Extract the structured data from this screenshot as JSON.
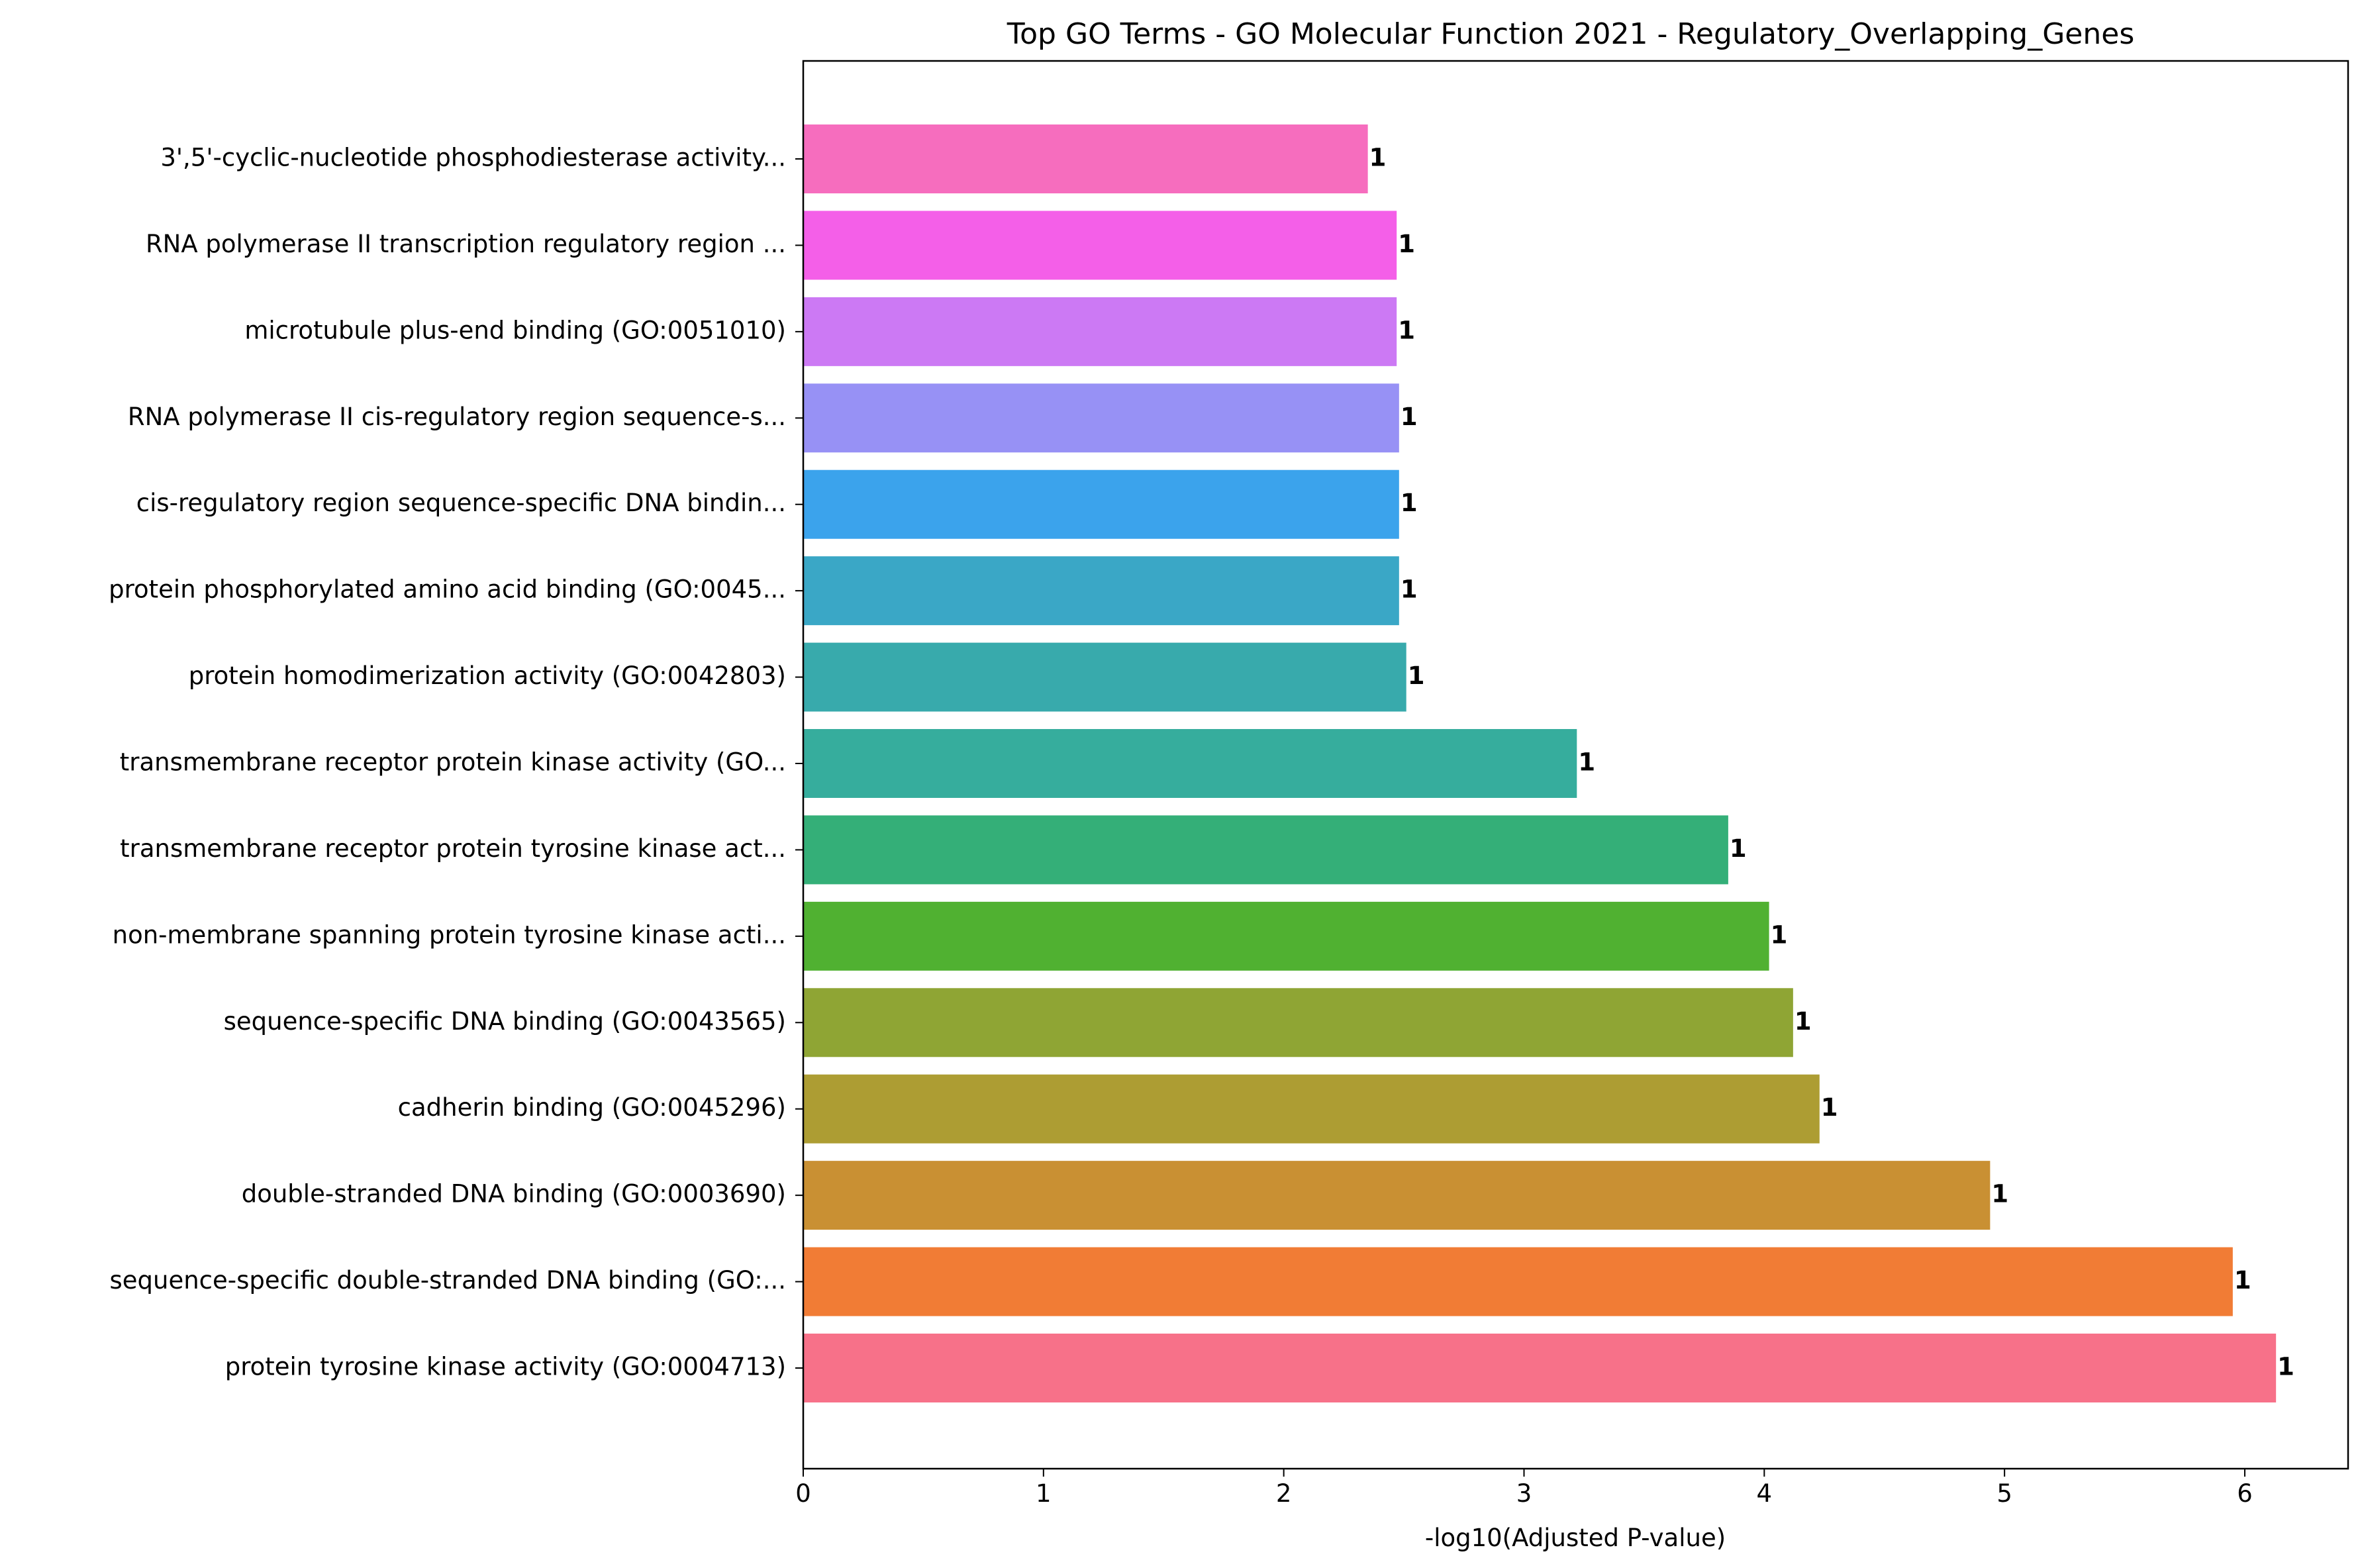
{
  "chart_data": {
    "type": "bar",
    "orientation": "horizontal",
    "title": "Top GO Terms - GO Molecular Function 2021 - Regulatory_Overlapping_Genes",
    "xlabel": "-log10(Adjusted P-value)",
    "ylabel": "",
    "xlim": [
      0,
      6.43
    ],
    "xticks": [
      "0",
      "1",
      "2",
      "3",
      "4",
      "5",
      "6"
    ],
    "grid": false,
    "bars": [
      {
        "label": "protein tyrosine kinase activity (GO:0004713)",
        "value": 6.13,
        "count": "1",
        "color": "#f77189"
      },
      {
        "label": "sequence-specific double-stranded DNA binding (GO:...",
        "value": 5.95,
        "count": "1",
        "color": "#f17c35"
      },
      {
        "label": "double-stranded DNA binding (GO:0003690)",
        "value": 4.94,
        "count": "1",
        "color": "#c99033"
      },
      {
        "label": "cadherin binding (GO:0045296)",
        "value": 4.23,
        "count": "1",
        "color": "#ad9d33"
      },
      {
        "label": "sequence-specific DNA binding (GO:0043565)",
        "value": 4.12,
        "count": "1",
        "color": "#8fa534"
      },
      {
        "label": "non-membrane spanning protein tyrosine kinase acti...",
        "value": 4.02,
        "count": "1",
        "color": "#50b131"
      },
      {
        "label": "transmembrane receptor protein tyrosine kinase act...",
        "value": 3.85,
        "count": "1",
        "color": "#34af78"
      },
      {
        "label": "transmembrane receptor protein kinase activity (GO...",
        "value": 3.22,
        "count": "1",
        "color": "#36ad9d"
      },
      {
        "label": "protein homodimerization activity (GO:0042803)",
        "value": 2.51,
        "count": "1",
        "color": "#38aaac"
      },
      {
        "label": "protein phosphorylated amino acid binding (GO:0045...",
        "value": 2.48,
        "count": "1",
        "color": "#3aa7c6"
      },
      {
        "label": "cis-regulatory region sequence-specific DNA bindin...",
        "value": 2.48,
        "count": "1",
        "color": "#3ba3ec"
      },
      {
        "label": "RNA polymerase II cis-regulatory region sequence-s...",
        "value": 2.48,
        "count": "1",
        "color": "#9791f5"
      },
      {
        "label": "microtubule plus-end binding (GO:0051010)",
        "value": 2.47,
        "count": "1",
        "color": "#cc79f4"
      },
      {
        "label": "RNA polymerase II transcription regulatory region ...",
        "value": 2.47,
        "count": "1",
        "color": "#f45fe8"
      },
      {
        "label": "3',5'-cyclic-nucleotide phosphodiesterase activity...",
        "value": 2.35,
        "count": "1",
        "color": "#f66dbe"
      }
    ]
  }
}
